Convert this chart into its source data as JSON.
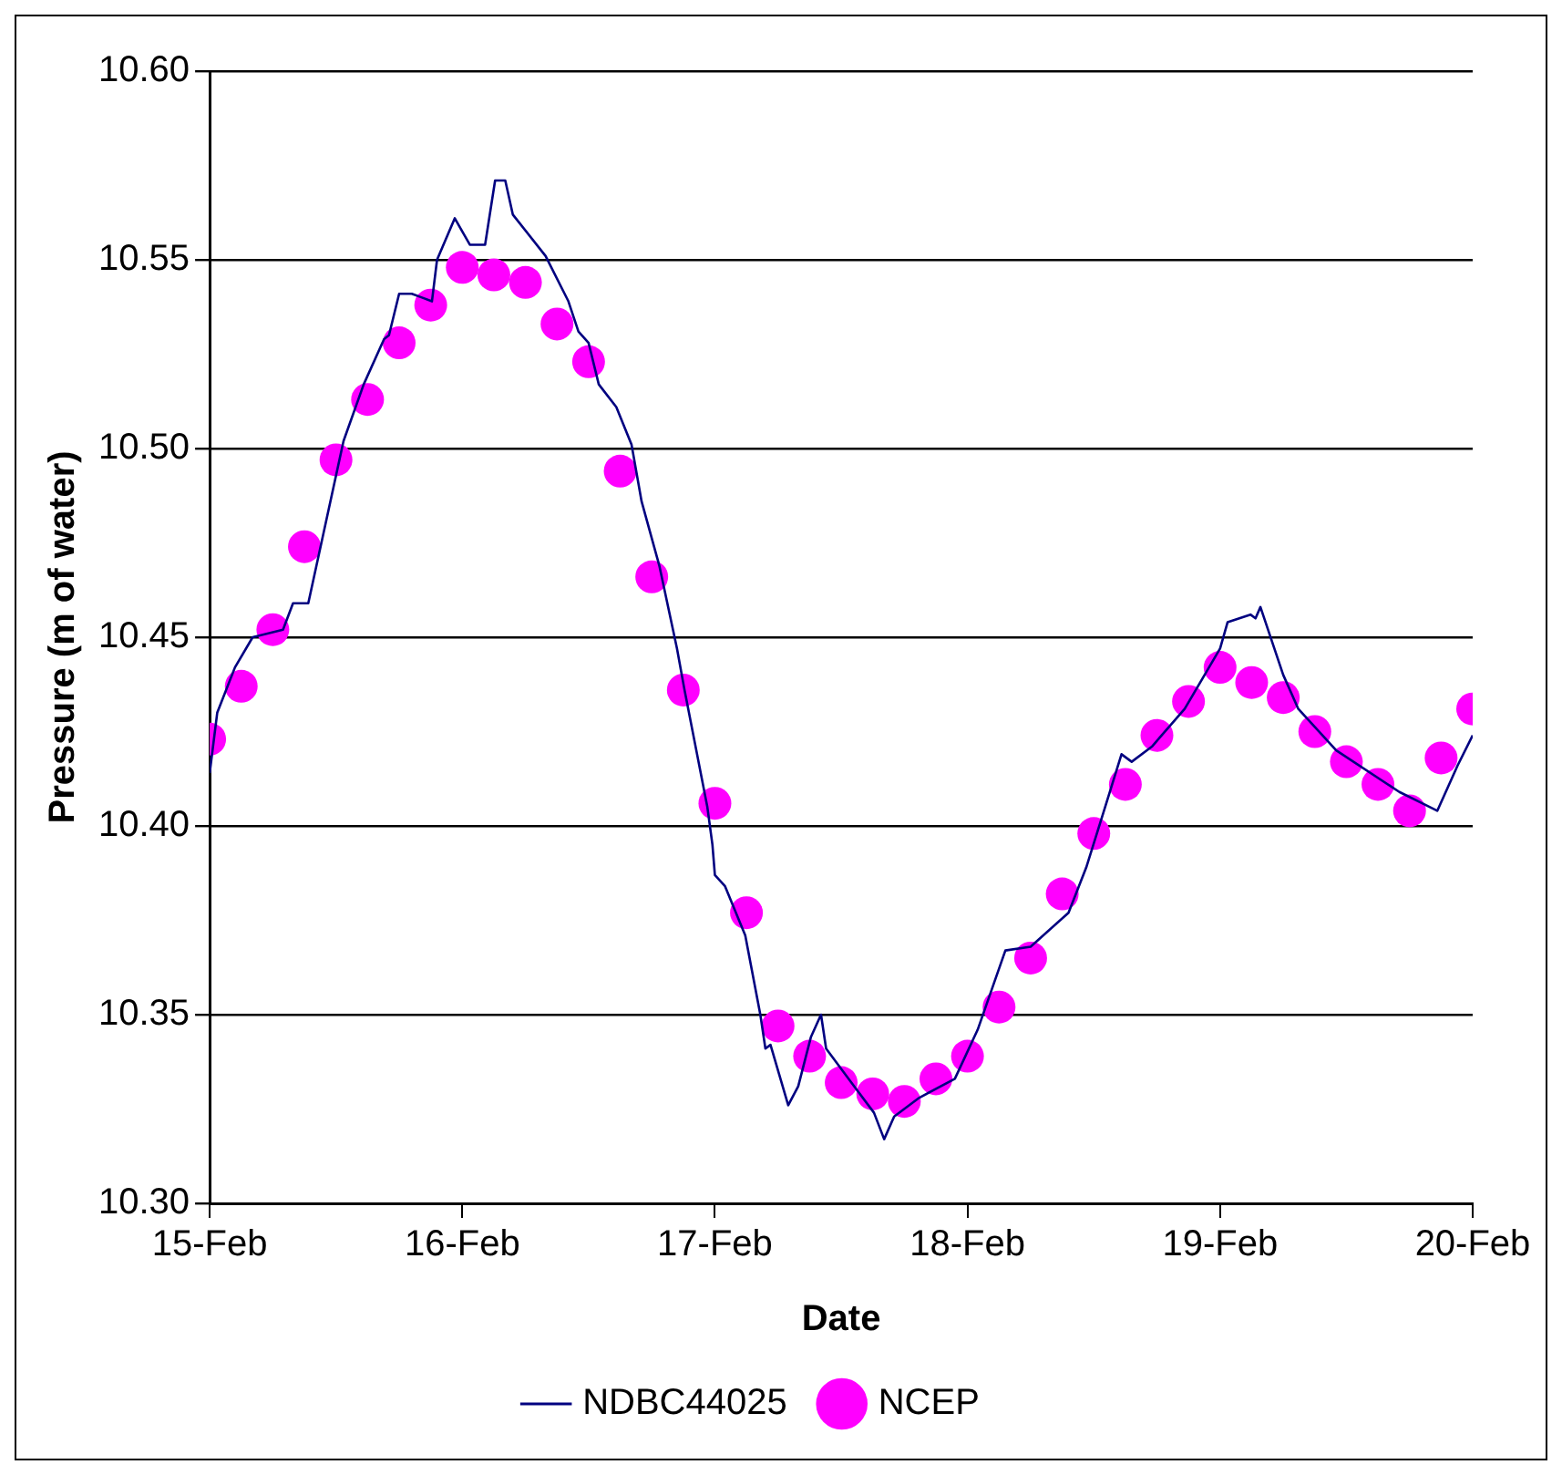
{
  "chart_data": {
    "type": "line",
    "xlabel": "Date",
    "ylabel": "Pressure (m of water)",
    "xlim": [
      "--02-15",
      "--02-20"
    ],
    "xticks": [
      {
        "value": "--02-15",
        "label": "15-Feb"
      },
      {
        "value": "--02-16",
        "label": "16-Feb"
      },
      {
        "value": "--02-17",
        "label": "17-Feb"
      },
      {
        "value": "--02-18",
        "label": "18-Feb"
      },
      {
        "value": "--02-19",
        "label": "19-Feb"
      },
      {
        "value": "--02-20",
        "label": "20-Feb"
      }
    ],
    "ylim": [
      10.3,
      10.6
    ],
    "yticks": [
      {
        "value": 10.3,
        "label": "10.30"
      },
      {
        "value": 10.35,
        "label": "10.35"
      },
      {
        "value": 10.4,
        "label": "10.40"
      },
      {
        "value": 10.45,
        "label": "10.45"
      },
      {
        "value": 10.5,
        "label": "10.50"
      },
      {
        "value": 10.55,
        "label": "10.55"
      },
      {
        "value": 10.6,
        "label": "10.60"
      }
    ],
    "grid": "y",
    "legend": "bottom",
    "line_style": "solid",
    "series": [
      {
        "name": "NDBC44025",
        "color": "#000080",
        "x": [
          "--02-15T00:00",
          "--02-15T00:43",
          "--02-15T02:24",
          "--02-15T04:05",
          "--02-15T06:58",
          "--02-15T07:55",
          "--02-15T09:22",
          "--02-15T12:43",
          "--02-15T14:38",
          "--02-15T16:34",
          "--02-15T17:02",
          "--02-15T18:00",
          "--02-15T19:12",
          "--02-15T20:10",
          "--02-15T21:07",
          "--02-15T21:36",
          "--02-15T23:17",
          "--02-16T00:43",
          "--02-16T02:10",
          "--02-16T03:07",
          "--02-16T04:05",
          "--02-16T04:48",
          "--02-16T07:55",
          "--02-16T10:05",
          "--02-16T11:02",
          "--02-16T12:00",
          "--02-16T12:58",
          "--02-16T14:38",
          "--02-16T16:05",
          "--02-16T17:02",
          "--02-16T18:43",
          "--02-16T20:24",
          "--02-16T21:07",
          "--02-16T23:17",
          "--02-16T23:46",
          "--02-17T00:00",
          "--02-17T00:58",
          "--02-17T02:53",
          "--02-17T04:19",
          "--02-17T04:48",
          "--02-17T05:17",
          "--02-17T06:58",
          "--02-17T07:55",
          "--02-17T09:07",
          "--02-17T10:05",
          "--02-17T10:34",
          "--02-17T12:58",
          "--02-17T15:07",
          "--02-17T16:05",
          "--02-17T17:02",
          "--02-17T19:26",
          "--02-17T22:48",
          "--02-18T00:58",
          "--02-18T03:36",
          "--02-18T06:00",
          "--02-18T09:36",
          "--02-18T11:17",
          "--02-18T12:58",
          "--02-18T14:38",
          "--02-18T15:36",
          "--02-18T17:31",
          "--02-18T20:38",
          "--02-19T00:00",
          "--02-19T00:43",
          "--02-19T02:53",
          "--02-19T03:22",
          "--02-19T03:50",
          "--02-19T06:00",
          "--02-19T07:26",
          "--02-19T11:02",
          "--02-19T17:02",
          "--02-19T19:12",
          "--02-19T20:38",
          "--02-19T22:34",
          "--02-20T00:00"
        ],
        "values": [
          10.414,
          10.43,
          10.442,
          10.45,
          10.452,
          10.459,
          10.459,
          10.502,
          10.517,
          10.529,
          10.53,
          10.541,
          10.541,
          10.54,
          10.539,
          10.55,
          10.561,
          10.554,
          10.554,
          10.571,
          10.571,
          10.562,
          10.551,
          10.539,
          10.531,
          10.528,
          10.517,
          10.511,
          10.501,
          10.486,
          10.469,
          10.447,
          10.436,
          10.405,
          10.395,
          10.387,
          10.384,
          10.371,
          10.35,
          10.341,
          10.342,
          10.326,
          10.331,
          10.344,
          10.35,
          10.341,
          10.332,
          10.324,
          10.317,
          10.323,
          10.328,
          10.333,
          10.346,
          10.367,
          10.368,
          10.377,
          10.389,
          10.404,
          10.419,
          10.417,
          10.421,
          10.431,
          10.447,
          10.454,
          10.456,
          10.455,
          10.458,
          10.44,
          10.431,
          10.42,
          10.409,
          10.406,
          10.404,
          10.416,
          10.424
        ]
      },
      {
        "name": "NCEP",
        "type": "scatter",
        "marker": "circle",
        "color": "#ff00ff",
        "x": [
          "--02-15T00:00",
          "--02-15T03:00",
          "--02-15T06:00",
          "--02-15T09:00",
          "--02-15T12:00",
          "--02-15T15:00",
          "--02-15T18:00",
          "--02-15T21:00",
          "--02-16T00:00",
          "--02-16T03:00",
          "--02-16T06:00",
          "--02-16T09:00",
          "--02-16T12:00",
          "--02-16T15:00",
          "--02-16T18:00",
          "--02-16T21:00",
          "--02-17T00:00",
          "--02-17T03:00",
          "--02-17T06:00",
          "--02-17T09:00",
          "--02-17T12:00",
          "--02-17T15:00",
          "--02-17T18:00",
          "--02-17T21:00",
          "--02-18T00:00",
          "--02-18T03:00",
          "--02-18T06:00",
          "--02-18T09:00",
          "--02-18T12:00",
          "--02-18T15:00",
          "--02-18T18:00",
          "--02-18T21:00",
          "--02-19T00:00",
          "--02-19T03:00",
          "--02-19T06:00",
          "--02-19T09:00",
          "--02-19T12:00",
          "--02-19T15:00",
          "--02-19T18:00",
          "--02-19T21:00",
          "--02-20T00:00"
        ],
        "values": [
          10.423,
          10.437,
          10.452,
          10.474,
          10.497,
          10.513,
          10.528,
          10.538,
          10.548,
          10.546,
          10.544,
          10.533,
          10.523,
          10.494,
          10.466,
          10.436,
          10.406,
          10.377,
          10.347,
          10.339,
          10.332,
          10.329,
          10.327,
          10.333,
          10.339,
          10.352,
          10.365,
          10.382,
          10.398,
          10.411,
          10.424,
          10.433,
          10.442,
          10.438,
          10.434,
          10.425,
          10.417,
          10.411,
          10.404,
          10.418,
          10.431
        ]
      }
    ]
  }
}
